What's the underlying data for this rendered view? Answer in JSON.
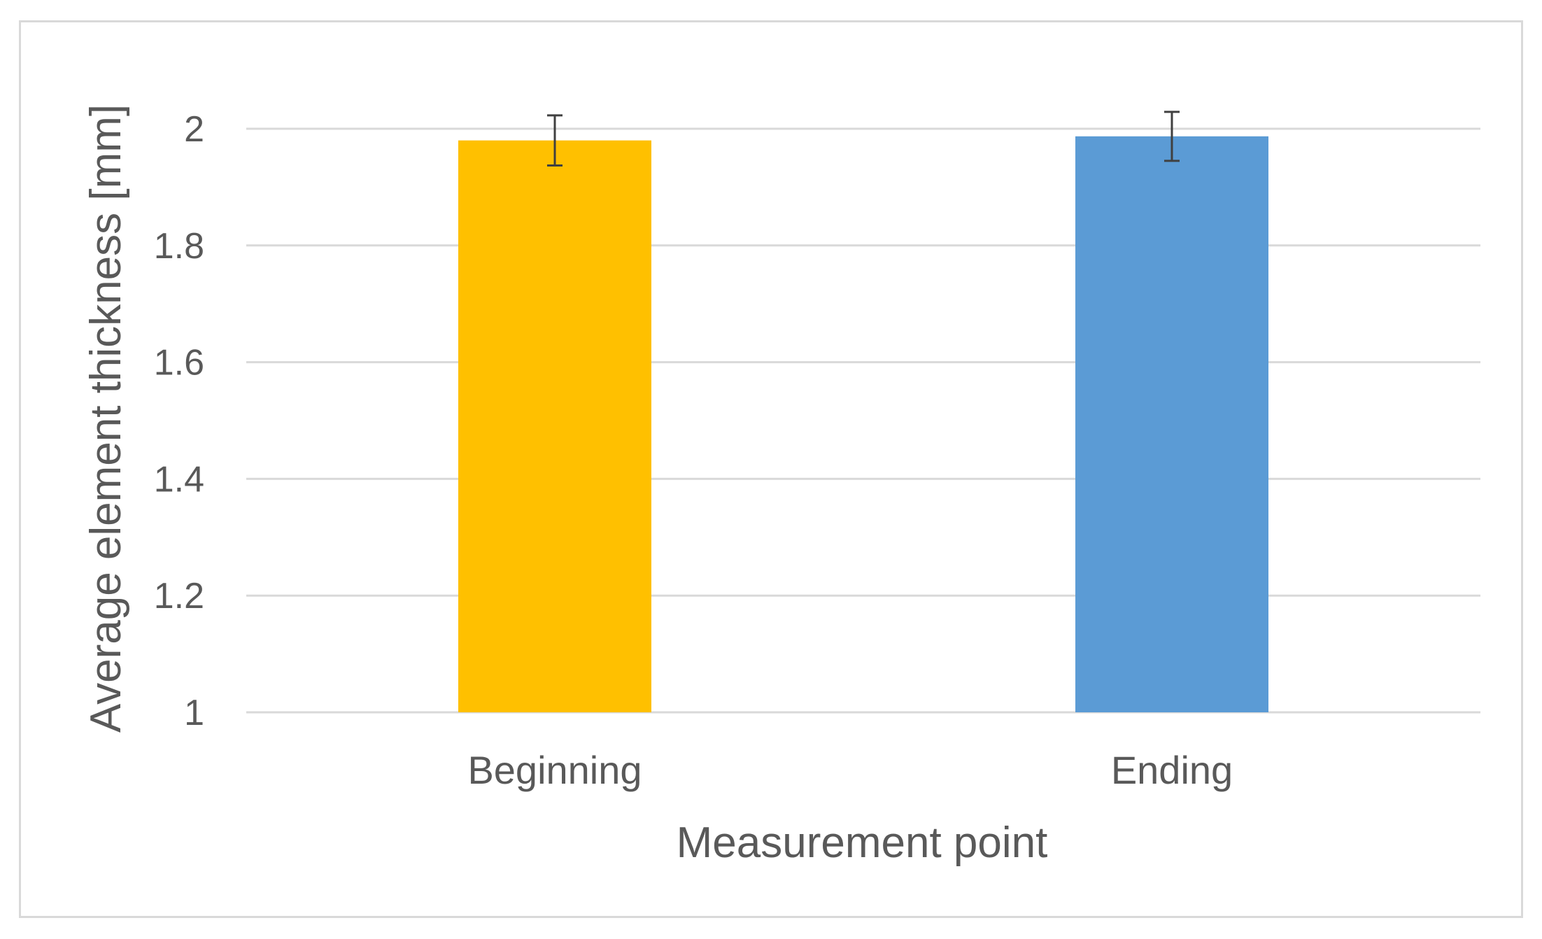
{
  "chart_data": {
    "type": "bar",
    "title": "",
    "xlabel": "Measurement point",
    "ylabel": "Average element thickness [mm]",
    "categories": [
      "Beginning",
      "Ending"
    ],
    "values": [
      1.98,
      1.987
    ],
    "error": [
      0.043,
      0.042
    ],
    "colors": [
      "#ffc000",
      "#5b9bd5"
    ],
    "ylim": [
      1,
      2
    ],
    "yticks": [
      1,
      1.2,
      1.4,
      1.6,
      1.8,
      2
    ],
    "ytick_labels": [
      "1",
      "1.2",
      "1.4",
      "1.6",
      "1.8",
      "2"
    ],
    "grid": true,
    "legend": "none"
  }
}
